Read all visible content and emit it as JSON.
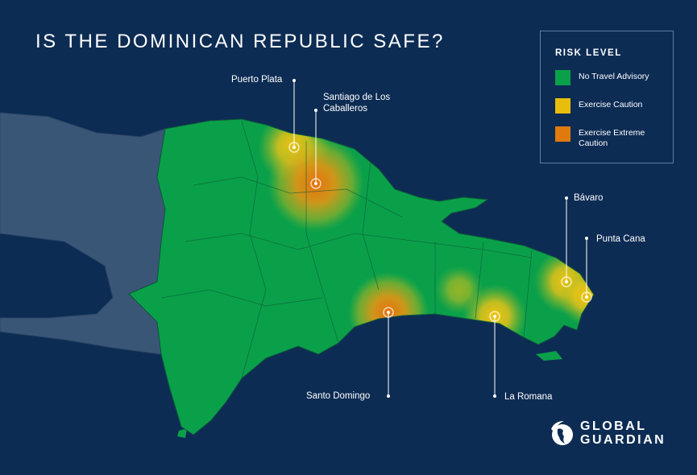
{
  "title": "IS THE DOMINICAN REPUBLIC SAFE?",
  "legend": {
    "title": "RISK LEVEL",
    "items": [
      {
        "label": "No Travel Advisory",
        "color": "#0aa04a"
      },
      {
        "label": "Exercise Caution",
        "color": "#e8bd0c"
      },
      {
        "label": "Exercise Extreme Caution",
        "color": "#e07a0e"
      }
    ]
  },
  "cities": [
    {
      "name": "Puerto Plata",
      "risk": "Exercise Caution"
    },
    {
      "name": "Santiago de Los Caballeros",
      "risk": "Exercise Extreme Caution"
    },
    {
      "name": "Santo Domingo",
      "risk": "Exercise Extreme Caution"
    },
    {
      "name": "La Romana",
      "risk": "Exercise Caution"
    },
    {
      "name": "Bávaro",
      "risk": "Exercise Caution"
    },
    {
      "name": "Punta Cana",
      "risk": "Exercise Caution"
    }
  ],
  "colors": {
    "background": "#0d2c54",
    "neighbor": "#3a5677",
    "land": "#0aa04a"
  },
  "logo": {
    "line1": "GLOBAL",
    "line2": "GUARDIAN"
  }
}
